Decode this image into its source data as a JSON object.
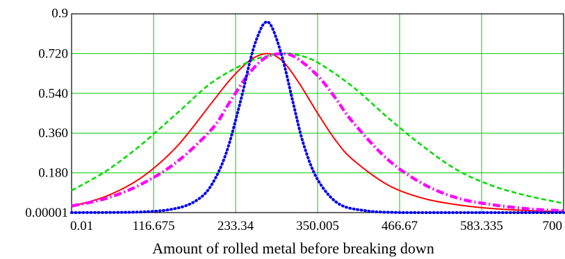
{
  "chart_data": {
    "type": "line",
    "xlabel": "Amount of rolled metal before breaking down",
    "ylabel": "",
    "xlim": [
      0.01,
      700
    ],
    "ylim": [
      1e-05,
      0.9
    ],
    "x_ticks": [
      {
        "value": 0.01,
        "label": "0.01"
      },
      {
        "value": 116.675,
        "label": "116.675"
      },
      {
        "value": 233.34,
        "label": "233.34"
      },
      {
        "value": 350.005,
        "label": "350.005"
      },
      {
        "value": 466.67,
        "label": "466.67"
      },
      {
        "value": 583.335,
        "label": "583.335"
      },
      {
        "value": 700,
        "label": "700"
      }
    ],
    "y_ticks": [
      {
        "value": 1e-05,
        "label": "0.00001"
      },
      {
        "value": 0.18,
        "label": "0.180"
      },
      {
        "value": 0.36,
        "label": "0.360"
      },
      {
        "value": 0.54,
        "label": "0.540"
      },
      {
        "value": 0.72,
        "label": "0.720"
      },
      {
        "value": 0.9,
        "label": "0.9"
      }
    ],
    "grid": true,
    "grid_color": "#00cc00",
    "series": [
      {
        "color": "#ff0000",
        "style": "solid",
        "x": [
          0,
          50,
          100,
          150,
          200,
          225,
          250,
          265,
          278,
          290,
          305,
          325,
          350,
          375,
          400,
          450,
          500,
          550,
          600,
          650,
          700
        ],
        "y": [
          0.028,
          0.075,
          0.16,
          0.3,
          0.5,
          0.6,
          0.68,
          0.71,
          0.72,
          0.71,
          0.67,
          0.58,
          0.45,
          0.33,
          0.24,
          0.125,
          0.065,
          0.035,
          0.018,
          0.009,
          0.005
        ]
      },
      {
        "color": "#00dd00",
        "style": "dashed",
        "x": [
          0,
          50,
          100,
          150,
          200,
          250,
          280,
          300,
          320,
          350,
          400,
          450,
          500,
          550,
          600,
          650,
          700
        ],
        "y": [
          0.1,
          0.19,
          0.31,
          0.45,
          0.59,
          0.68,
          0.71,
          0.72,
          0.715,
          0.68,
          0.57,
          0.43,
          0.3,
          0.19,
          0.12,
          0.075,
          0.042
        ]
      },
      {
        "color": "#ff00ff",
        "style": "dashdot",
        "x": [
          0,
          50,
          100,
          150,
          200,
          225,
          250,
          275,
          300,
          320,
          350,
          375,
          400,
          450,
          500,
          550,
          600,
          650,
          700
        ],
        "y": [
          0.03,
          0.065,
          0.13,
          0.23,
          0.38,
          0.5,
          0.62,
          0.7,
          0.72,
          0.7,
          0.62,
          0.52,
          0.41,
          0.24,
          0.13,
          0.065,
          0.035,
          0.017,
          0.008
        ]
      },
      {
        "color": "#0000ee",
        "style": "dotted",
        "x": [
          0,
          100,
          150,
          180,
          200,
          220,
          240,
          255,
          265,
          275,
          285,
          300,
          315,
          330,
          350,
          380,
          420,
          460,
          500,
          700
        ],
        "y": [
          0.0,
          0.003,
          0.02,
          0.06,
          0.13,
          0.27,
          0.5,
          0.7,
          0.8,
          0.86,
          0.84,
          0.7,
          0.5,
          0.31,
          0.15,
          0.04,
          0.008,
          0.001,
          0.0,
          0.0
        ]
      }
    ]
  }
}
